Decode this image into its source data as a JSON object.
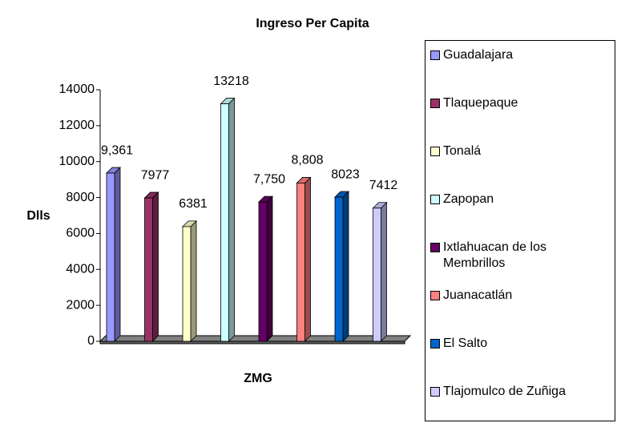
{
  "chart_data": {
    "type": "bar",
    "title": "Ingreso Per Capita",
    "x_label": "ZMG",
    "y_label": "Dlls",
    "categories": [
      null
    ],
    "series": [
      {
        "name": "Guadalajara",
        "color": "#9999ff",
        "values": [
          9361
        ],
        "value_labels": [
          "9,361"
        ]
      },
      {
        "name": "Tlaquepaque",
        "color": "#993366",
        "values": [
          7977
        ]
      },
      {
        "name": "Tonalá",
        "color": "#ffffcc",
        "values": [
          6381
        ]
      },
      {
        "name": "Zapopan",
        "color": "#ccffff",
        "values": [
          13218
        ]
      },
      {
        "name": "Ixtlahuacan de los Membrillos",
        "color": "#660066",
        "values": [
          7750
        ],
        "value_labels": [
          "7,750"
        ]
      },
      {
        "name": "Juanacatlán",
        "color": "#ff8080",
        "values": [
          8808
        ],
        "value_labels": [
          "8,808"
        ]
      },
      {
        "name": "El Salto",
        "color": "#0066cc",
        "values": [
          8023
        ]
      },
      {
        "name": "Tlajomulco de Zuñiga",
        "color": "#ccccff",
        "values": [
          7412
        ]
      }
    ],
    "ylim": [
      0,
      14000
    ],
    "yticks": [
      0,
      2000,
      4000,
      6000,
      8000,
      10000,
      12000,
      14000
    ],
    "legend": "right"
  }
}
